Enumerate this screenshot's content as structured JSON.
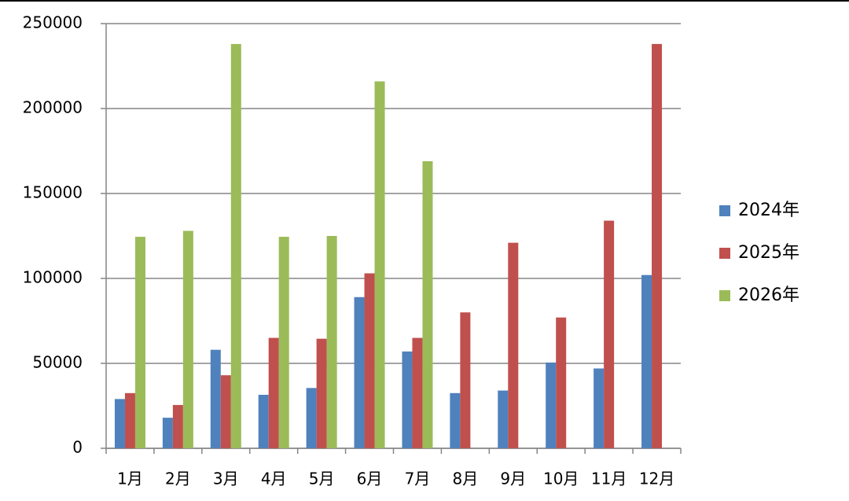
{
  "chart_data": {
    "type": "bar",
    "categories": [
      "1月",
      "2月",
      "3月",
      "4月",
      "5月",
      "6月",
      "7月",
      "8月",
      "9月",
      "10月",
      "11月",
      "12月"
    ],
    "series": [
      {
        "name": "2024年",
        "color": "#4f81bd",
        "values": [
          29000,
          18000,
          58000,
          31500,
          35500,
          89000,
          57000,
          32500,
          34000,
          50500,
          47000,
          102000
        ]
      },
      {
        "name": "2025年",
        "color": "#c0504d",
        "values": [
          32500,
          25500,
          43000,
          65000,
          64500,
          103000,
          65000,
          80000,
          121000,
          77000,
          134000,
          238000
        ]
      },
      {
        "name": "2026年",
        "color": "#9bbb59",
        "values": [
          124500,
          128000,
          238000,
          124500,
          125000,
          216000,
          169000,
          null,
          null,
          null,
          null,
          null
        ]
      }
    ],
    "ylim": [
      0,
      250000
    ],
    "yticks": [
      0,
      50000,
      100000,
      150000,
      200000,
      250000
    ],
    "grid": true,
    "legend": "right"
  }
}
